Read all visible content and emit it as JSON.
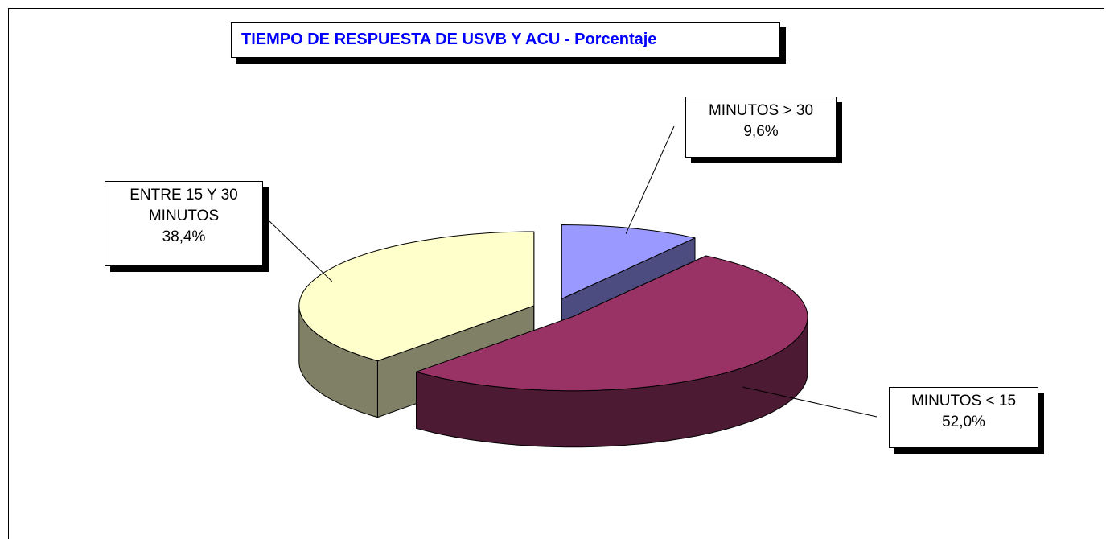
{
  "chart_data": {
    "type": "pie3d",
    "title": "TIEMPO DE RESPUESTA DE USVB Y ACU - Porcentaje",
    "categories": [
      "MINUTOS > 30",
      "MINUTOS < 15",
      "ENTRE 15 Y 30 MINUTOS"
    ],
    "values": [
      9.6,
      52.0,
      38.4
    ],
    "value_labels": [
      "9,6%",
      "52,0%",
      "38,4%"
    ],
    "colors": [
      "#9999ff",
      "#993366",
      "#ffffcc"
    ],
    "side_colors": [
      "#4c4c80",
      "#4d1a33",
      "#808066"
    ]
  }
}
